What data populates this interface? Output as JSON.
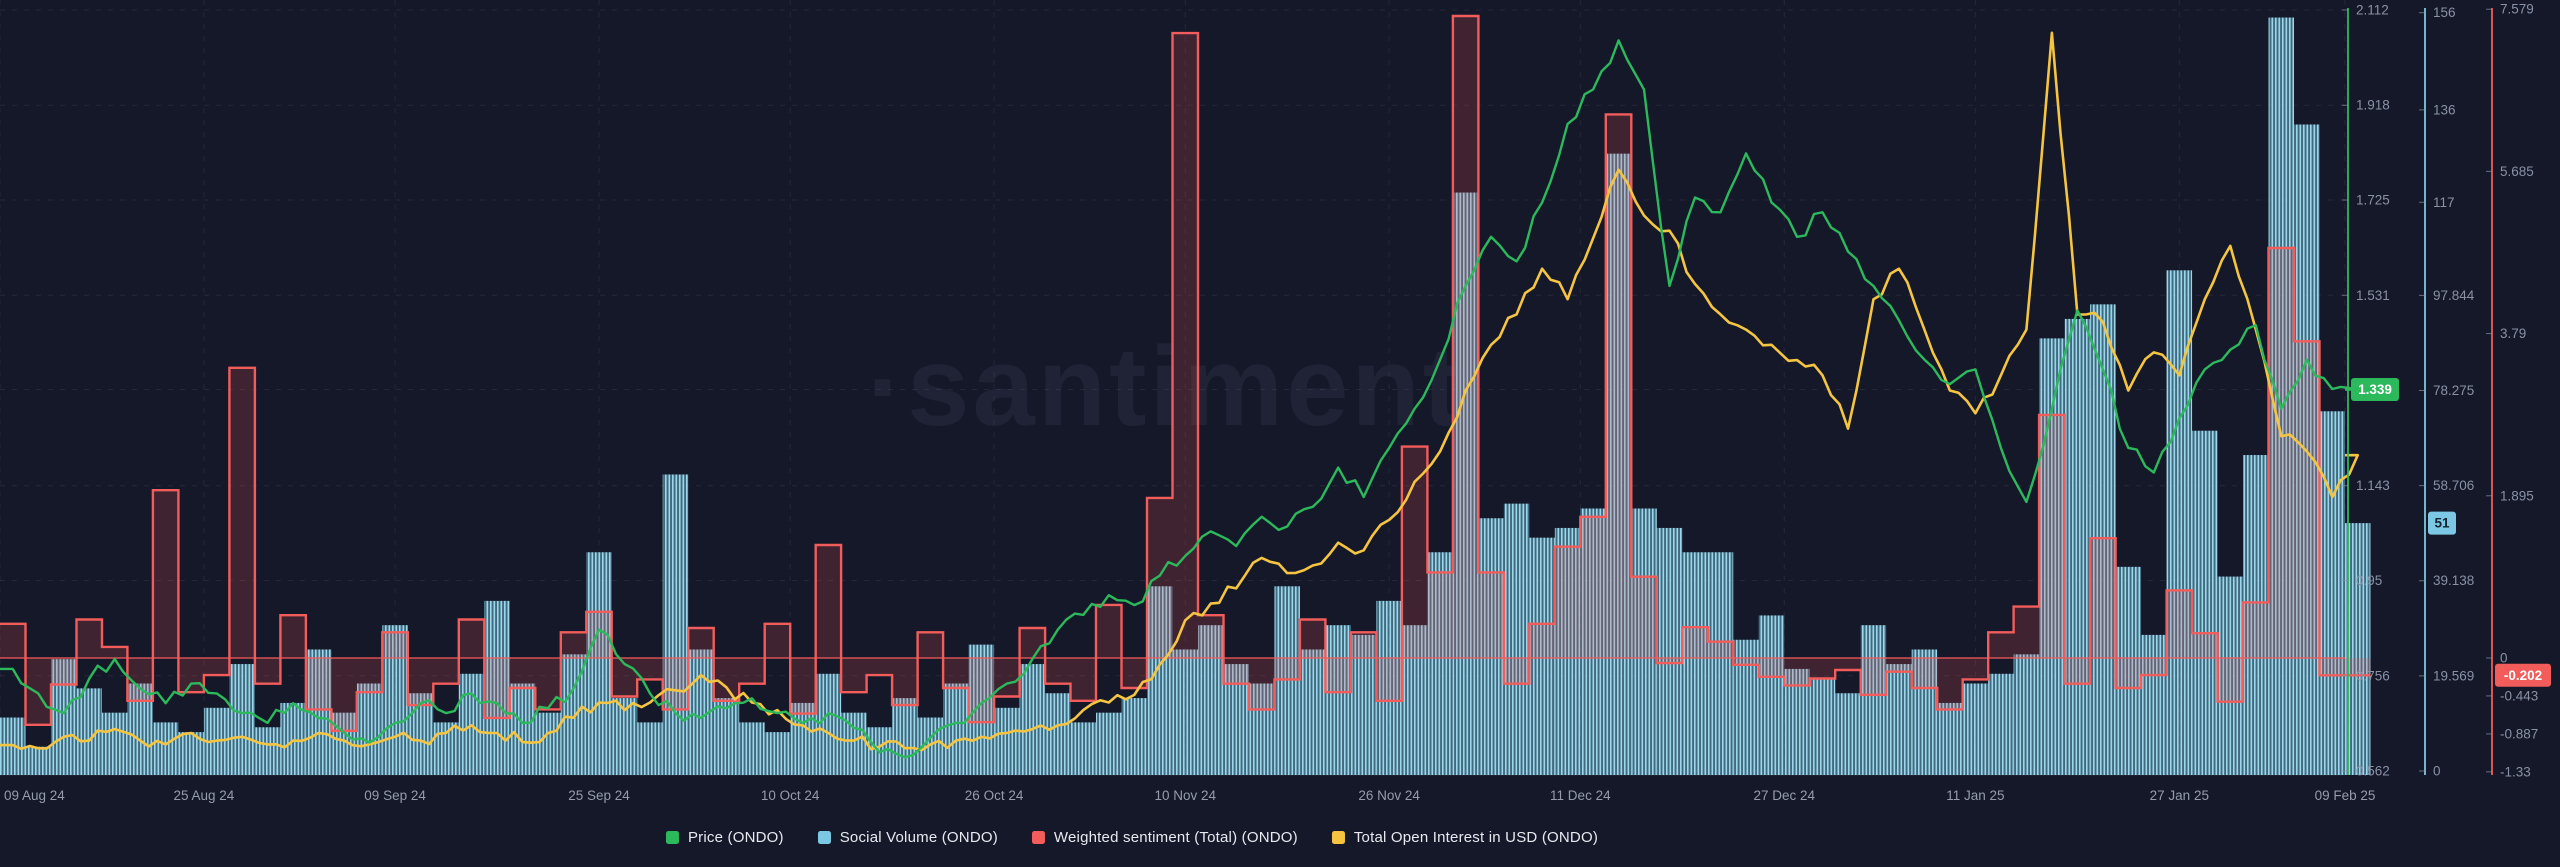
{
  "watermark": "·santiment",
  "colors": {
    "background": "#141829",
    "grid": "rgba(255,255,255,0.07)",
    "price": "#2cb95c",
    "social_volume": "#7cc8e4",
    "sentiment": "#f25c5a",
    "open_interest": "#f5c542",
    "axis_text": "#8a91a5",
    "x_label_text": "#969cab",
    "legend_text": "#e8eaf0"
  },
  "legend": [
    {
      "id": "price",
      "label": "Price (ONDO)",
      "color": "#2cb95c"
    },
    {
      "id": "social_volume",
      "label": "Social Volume (ONDO)",
      "color": "#7cc8e4"
    },
    {
      "id": "sentiment",
      "label": "Weighted sentiment (Total) (ONDO)",
      "color": "#f25c5a"
    },
    {
      "id": "open_interest",
      "label": "Total Open Interest in USD (ONDO)",
      "color": "#f5c542"
    }
  ],
  "x_axis": {
    "labels": [
      {
        "label": "09 Aug 24",
        "day": 0
      },
      {
        "label": "25 Aug 24",
        "day": 16
      },
      {
        "label": "09 Sep 24",
        "day": 31
      },
      {
        "label": "25 Sep 24",
        "day": 47
      },
      {
        "label": "10 Oct 24",
        "day": 62
      },
      {
        "label": "26 Oct 24",
        "day": 78
      },
      {
        "label": "10 Nov 24",
        "day": 93
      },
      {
        "label": "26 Nov 24",
        "day": 109
      },
      {
        "label": "11 Dec 24",
        "day": 124
      },
      {
        "label": "27 Dec 24",
        "day": 140
      },
      {
        "label": "11 Jan 25",
        "day": 155
      },
      {
        "label": "27 Jan 25",
        "day": 171
      },
      {
        "label": "09 Feb 25",
        "day": 184
      }
    ]
  },
  "axes": {
    "price": {
      "side": "right",
      "color": "#2cb95c",
      "min": 0.562,
      "max": 2.112,
      "ticks": [
        "2.112",
        "1.918",
        "1.725",
        "1.531",
        "1.143",
        "0.95",
        "0.756",
        "0.562"
      ],
      "current_badge": "1.339",
      "badge_value": 1.339
    },
    "social_volume": {
      "side": "right",
      "color": "#7cc8e4",
      "min": 0,
      "max": 156.55,
      "ticks": [
        "156",
        "136",
        "117",
        "97.844",
        "78.275",
        "58.706",
        "39.138",
        "19.569",
        "0"
      ],
      "current_badge": "51",
      "badge_value": 51
    },
    "sentiment": {
      "side": "right",
      "color": "#f25c5a",
      "min": -1.33,
      "max": 7.579,
      "ticks": [
        "7.579",
        "5.685",
        "3.79",
        "1.895",
        "0",
        "-0.443",
        "-0.887",
        "-1.33"
      ],
      "current_badge": "-0.202",
      "badge_value": -0.202
    }
  },
  "chart_data": {
    "type": "mixed",
    "title": "",
    "x": {
      "start_date": "2024-08-09",
      "end_date": "2025-02-09",
      "step_days": 2,
      "total_days": 184
    },
    "legend_position": "bottom-center",
    "grid": true,
    "series": [
      {
        "name": "Price (ONDO)",
        "type": "line",
        "color": "#2cb95c",
        "axis": "price",
        "unit": "USD",
        "ylim": [
          0.562,
          2.112
        ],
        "current": 1.339,
        "values": [
          0.77,
          0.72,
          0.68,
          0.75,
          0.79,
          0.73,
          0.7,
          0.74,
          0.72,
          0.68,
          0.66,
          0.7,
          0.67,
          0.64,
          0.62,
          0.66,
          0.7,
          0.68,
          0.72,
          0.7,
          0.66,
          0.69,
          0.73,
          0.85,
          0.78,
          0.72,
          0.68,
          0.67,
          0.69,
          0.71,
          0.68,
          0.66,
          0.68,
          0.65,
          0.6,
          0.59,
          0.63,
          0.66,
          0.7,
          0.74,
          0.79,
          0.85,
          0.88,
          0.92,
          0.9,
          0.96,
          1.0,
          1.05,
          1.02,
          1.08,
          1.06,
          1.1,
          1.18,
          1.12,
          1.22,
          1.3,
          1.4,
          1.55,
          1.65,
          1.6,
          1.72,
          1.88,
          1.95,
          2.05,
          1.95,
          1.55,
          1.73,
          1.7,
          1.82,
          1.72,
          1.65,
          1.7,
          1.62,
          1.55,
          1.48,
          1.4,
          1.35,
          1.38,
          1.22,
          1.11,
          1.3,
          1.5,
          1.38,
          1.22,
          1.17,
          1.28,
          1.38,
          1.42,
          1.47,
          1.3,
          1.4,
          1.34,
          1.339
        ]
      },
      {
        "name": "Social Volume (ONDO)",
        "type": "bar",
        "color": "#7cc8e4",
        "axis": "social_volume",
        "ylim": [
          0,
          156.55
        ],
        "current": 51,
        "values": [
          11,
          5,
          23,
          17,
          12,
          18,
          10,
          8,
          13,
          22,
          9,
          14,
          25,
          12,
          18,
          30,
          16,
          10,
          20,
          35,
          18,
          12,
          24,
          45,
          15,
          10,
          61,
          25,
          15,
          10,
          8,
          14,
          20,
          12,
          9,
          15,
          11,
          18,
          26,
          13,
          22,
          16,
          10,
          12,
          15,
          38,
          25,
          30,
          22,
          18,
          38,
          25,
          30,
          28,
          35,
          30,
          45,
          119,
          52,
          55,
          48,
          50,
          54,
          127,
          54,
          50,
          45,
          45,
          27,
          32,
          21,
          19,
          16,
          30,
          22,
          25,
          14,
          18,
          20,
          24,
          89,
          93,
          96,
          42,
          28,
          103,
          70,
          40,
          65,
          155,
          133,
          74,
          51
        ]
      },
      {
        "name": "Weighted sentiment (Total) (ONDO)",
        "type": "step-area",
        "color": "#f25c5a",
        "axis": "sentiment",
        "baseline": 0,
        "ylim": [
          -1.33,
          7.579
        ],
        "current": -0.202,
        "values": [
          0.4,
          -0.78,
          -0.31,
          0.45,
          0.13,
          -0.5,
          1.96,
          -0.4,
          -0.2,
          3.39,
          -0.3,
          0.5,
          -0.6,
          -0.85,
          -0.4,
          0.3,
          -0.55,
          -0.3,
          0.45,
          -0.7,
          -0.35,
          -0.6,
          0.3,
          0.54,
          -0.45,
          -0.25,
          -0.6,
          0.35,
          -0.5,
          -0.3,
          0.4,
          -0.65,
          1.32,
          -0.4,
          -0.2,
          -0.55,
          0.3,
          -0.35,
          -0.75,
          -0.45,
          0.35,
          -0.3,
          -0.5,
          0.62,
          -0.35,
          1.87,
          7.3,
          0.5,
          -0.3,
          -0.6,
          -0.25,
          0.45,
          -0.4,
          0.3,
          -0.5,
          2.47,
          1.0,
          7.5,
          1.0,
          -0.3,
          0.4,
          1.3,
          1.65,
          6.35,
          0.95,
          -0.06,
          0.36,
          0.19,
          -0.08,
          -0.22,
          -0.32,
          -0.24,
          -0.14,
          -0.43,
          -0.16,
          -0.35,
          -0.6,
          -0.25,
          0.3,
          0.6,
          2.84,
          -0.3,
          1.4,
          -0.35,
          -0.2,
          0.79,
          0.29,
          -0.51,
          0.65,
          4.79,
          3.7,
          -0.202,
          -0.202
        ]
      },
      {
        "name": "Total Open Interest in USD (ONDO)",
        "type": "line",
        "color": "#f5c542",
        "axis": "hidden",
        "unit": "normalized fraction of chart height (axis not shown)",
        "ylim": [
          0,
          1
        ],
        "values": [
          0.034,
          0.03,
          0.045,
          0.04,
          0.055,
          0.04,
          0.035,
          0.05,
          0.04,
          0.045,
          0.035,
          0.04,
          0.05,
          0.04,
          0.035,
          0.045,
          0.04,
          0.05,
          0.06,
          0.05,
          0.038,
          0.05,
          0.07,
          0.09,
          0.08,
          0.09,
          0.106,
          0.126,
          0.11,
          0.09,
          0.08,
          0.06,
          0.05,
          0.04,
          0.032,
          0.03,
          0.035,
          0.04,
          0.045,
          0.05,
          0.055,
          0.06,
          0.08,
          0.09,
          0.1,
          0.14,
          0.198,
          0.22,
          0.24,
          0.28,
          0.26,
          0.27,
          0.3,
          0.29,
          0.33,
          0.38,
          0.42,
          0.5,
          0.56,
          0.6,
          0.66,
          0.62,
          0.7,
          0.79,
          0.73,
          0.71,
          0.64,
          0.6,
          0.58,
          0.56,
          0.54,
          0.52,
          0.45,
          0.62,
          0.66,
          0.58,
          0.5,
          0.47,
          0.52,
          0.58,
          0.97,
          0.6,
          0.59,
          0.5,
          0.55,
          0.52,
          0.62,
          0.69,
          0.58,
          0.44,
          0.42,
          0.36,
          0.415
        ]
      }
    ]
  }
}
